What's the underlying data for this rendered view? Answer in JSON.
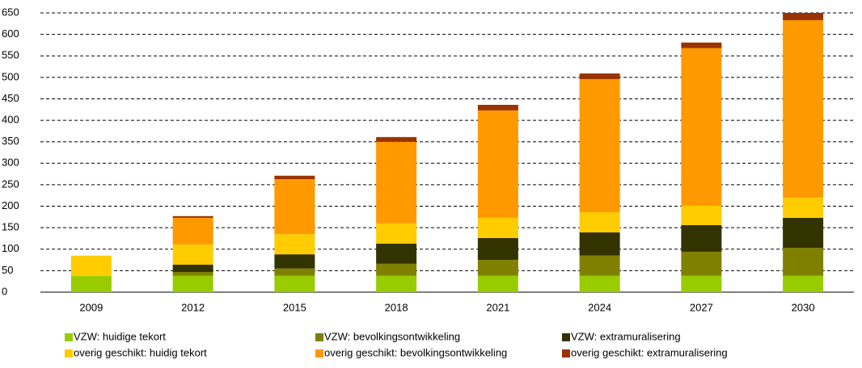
{
  "chart_data": {
    "type": "stacked_bar",
    "categories": [
      "2009",
      "2012",
      "2015",
      "2018",
      "2021",
      "2024",
      "2027",
      "2030"
    ],
    "series": [
      {
        "name": "VZW: huidige tekort",
        "color": "#99cc00",
        "values": [
          38,
          38,
          38,
          38,
          38,
          38,
          38,
          38
        ]
      },
      {
        "name": "VZW: bevolkingsontwikkeling",
        "color": "#808000",
        "values": [
          0,
          9,
          17,
          28,
          37,
          47,
          56,
          65
        ]
      },
      {
        "name": "VZW: extramuralisering",
        "color": "#333300",
        "values": [
          0,
          17,
          33,
          47,
          51,
          54,
          62,
          70
        ]
      },
      {
        "name": "overig geschikt: huidig tekort",
        "color": "#ffcc00",
        "values": [
          47,
          47,
          47,
          47,
          47,
          47,
          45,
          47
        ]
      },
      {
        "name": "overig geschikt: bevolkingsontwikkeling",
        "color": "#ff9900",
        "values": [
          0,
          62,
          128,
          190,
          250,
          310,
          367,
          413
        ]
      },
      {
        "name": "overig geschikt: extramuralisering",
        "color": "#993300",
        "values": [
          0,
          4,
          8,
          11,
          13,
          13,
          13,
          17
        ]
      }
    ],
    "ylim": [
      0,
      650
    ],
    "yticks": [
      0,
      50,
      100,
      150,
      200,
      250,
      300,
      350,
      400,
      450,
      500,
      550,
      600,
      650
    ],
    "grid": true
  }
}
